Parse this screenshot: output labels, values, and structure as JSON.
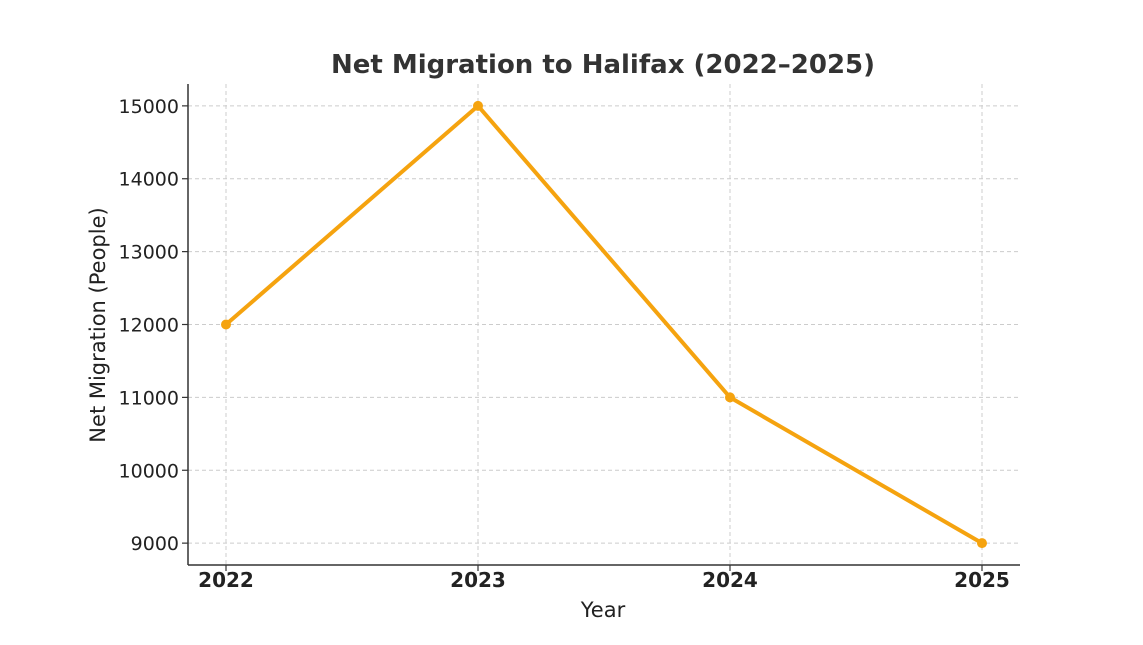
{
  "chart_data": {
    "type": "line",
    "title": "Net Migration to Halifax (2022–2025)",
    "xlabel": "Year",
    "ylabel": "Net Migration (People)",
    "categories": [
      "2022",
      "2023",
      "2024",
      "2025"
    ],
    "series": [
      {
        "values": [
          12000,
          15000,
          11000,
          9000
        ]
      }
    ],
    "ylim": [
      8700,
      15300
    ],
    "yticks": [
      9000,
      10000,
      11000,
      12000,
      13000,
      14000,
      15000
    ],
    "grid": true,
    "line_color": "#f5a30f",
    "axis_color": "#333333",
    "grid_color": "#cccccc"
  }
}
